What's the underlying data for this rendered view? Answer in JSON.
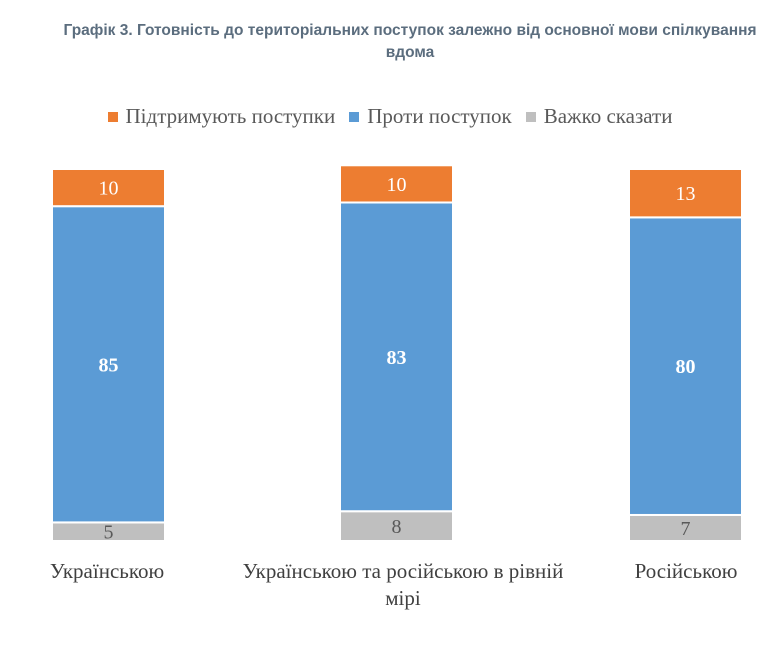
{
  "chart_data": {
    "type": "bar",
    "stacked": true,
    "title": "Графік 3. Готовність до територіальних поступок залежно від основної мови спілкування вдома",
    "categories": [
      "Українською",
      "Українською та російською в рівній мірі",
      "Російською"
    ],
    "series": [
      {
        "name": "Важко сказати",
        "color": "#bfbfbf",
        "values": [
          5,
          8,
          7
        ]
      },
      {
        "name": "Проти поступок",
        "color": "#5b9bd5",
        "values": [
          85,
          83,
          80
        ]
      },
      {
        "name": "Підтримують поступки",
        "color": "#ed7d31",
        "values": [
          10,
          10,
          13
        ]
      }
    ],
    "legend": [
      "Підтримують поступки",
      "Проти поступок",
      "Важко сказати"
    ],
    "legend_position": "top",
    "xlabel": "",
    "ylabel": "",
    "ylim": [
      0,
      100
    ],
    "grid": false
  }
}
